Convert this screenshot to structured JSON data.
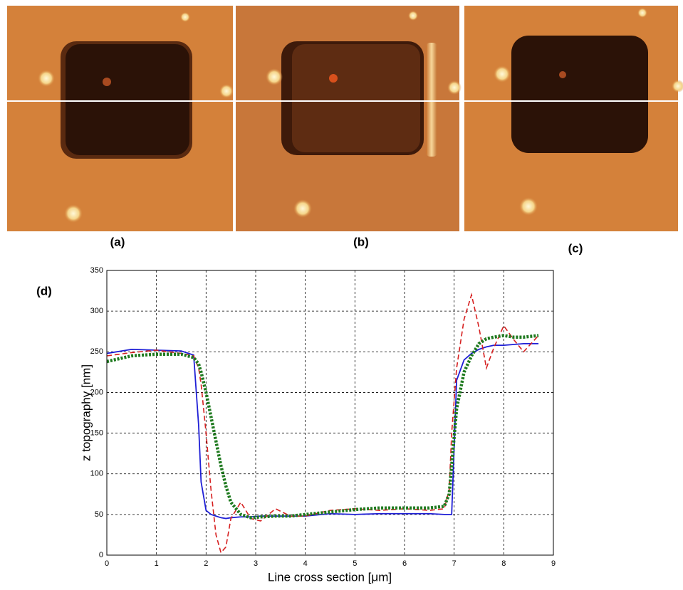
{
  "images": {
    "labels": [
      "(a)",
      "(b)",
      "(c)"
    ]
  },
  "chart_data": {
    "type": "line",
    "label": "(d)",
    "x_label": "Line cross section [μm]",
    "y_label": "z topography [nm]",
    "xlim": [
      0,
      9
    ],
    "ylim": [
      0,
      350
    ],
    "xticks": [
      0,
      1,
      2,
      3,
      4,
      5,
      6,
      7,
      8,
      9
    ],
    "yticks": [
      0,
      50,
      100,
      150,
      200,
      250,
      300,
      350
    ],
    "grid": true,
    "x": [
      0,
      0.5,
      1,
      1.5,
      1.75,
      1.85,
      1.9,
      2,
      2.1,
      2.2,
      2.3,
      2.4,
      2.5,
      2.7,
      2.9,
      3.1,
      3.4,
      3.7,
      4,
      4.5,
      5,
      5.5,
      6,
      6.5,
      6.8,
      6.9,
      6.95,
      7.05,
      7.2,
      7.35,
      7.5,
      7.65,
      7.8,
      8,
      8.2,
      8.4,
      8.7
    ],
    "series": [
      {
        "color": "#1f1fd6",
        "dash": "solid",
        "values": [
          248,
          253,
          252,
          251,
          246,
          160,
          90,
          55,
          50,
          48,
          46,
          45,
          46,
          47,
          47,
          48,
          48,
          48,
          48,
          51,
          50,
          51,
          51,
          51,
          50,
          50,
          50,
          215,
          240,
          248,
          253,
          256,
          258,
          258,
          259,
          260,
          260
        ]
      },
      {
        "color": "#d62020",
        "dash": "dashed",
        "values": [
          245,
          249,
          252,
          248,
          245,
          230,
          210,
          150,
          80,
          25,
          3,
          10,
          45,
          65,
          45,
          42,
          57,
          48,
          48,
          55,
          57,
          55,
          57,
          55,
          57,
          80,
          150,
          230,
          290,
          320,
          280,
          230,
          255,
          282,
          265,
          250,
          270
        ]
      },
      {
        "color": "#1f7a1f",
        "dash": "dotted",
        "values": [
          238,
          245,
          247,
          247,
          243,
          235,
          225,
          200,
          170,
          140,
          110,
          85,
          65,
          50,
          46,
          47,
          48,
          48,
          50,
          53,
          56,
          58,
          58,
          58,
          60,
          75,
          110,
          180,
          225,
          245,
          260,
          266,
          268,
          270,
          268,
          268,
          270
        ]
      }
    ]
  }
}
